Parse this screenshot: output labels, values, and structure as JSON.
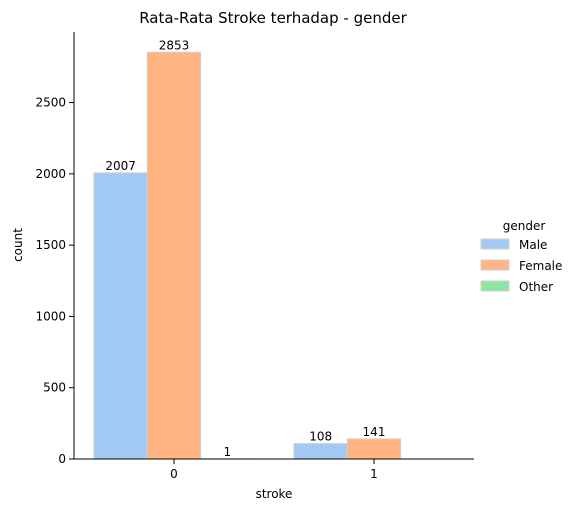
{
  "chart_data": {
    "type": "bar",
    "title": "Rata-Rata Stroke terhadap - gender",
    "xlabel": "stroke",
    "ylabel": "count",
    "categories": [
      "0",
      "1"
    ],
    "ylim": [
      0,
      2995
    ],
    "yticks": [
      0,
      500,
      1000,
      1500,
      2000,
      2500
    ],
    "grid": false,
    "legend": {
      "title": "gender",
      "placement": "right"
    },
    "series": [
      {
        "name": "Male",
        "values": [
          2007,
          108
        ],
        "labels": [
          "2007",
          "108"
        ],
        "color": "#a1c9f4"
      },
      {
        "name": "Female",
        "values": [
          2853,
          141
        ],
        "labels": [
          "2853",
          "141"
        ],
        "color": "#ffb482"
      },
      {
        "name": "Other",
        "values": [
          1,
          0
        ],
        "labels": [
          "1",
          ""
        ],
        "color": "#8de5a1"
      }
    ]
  }
}
